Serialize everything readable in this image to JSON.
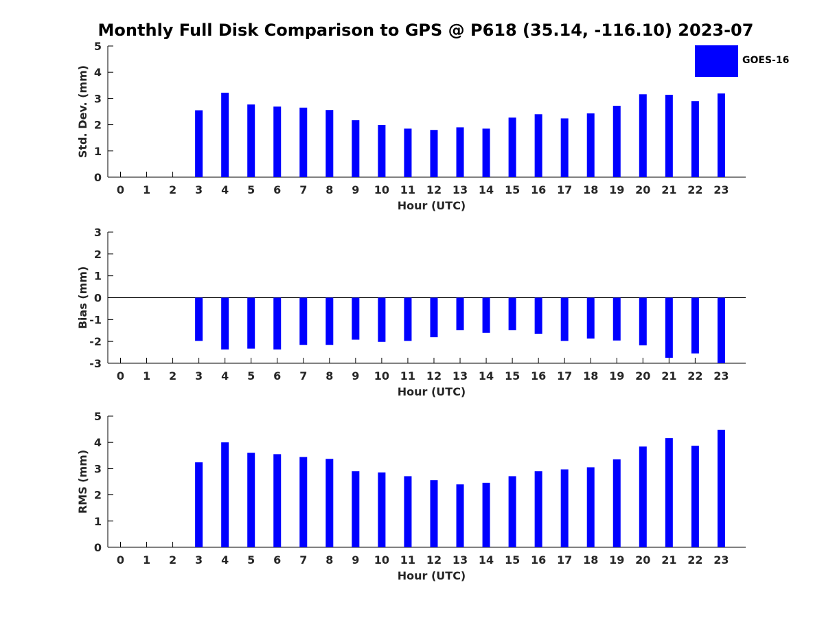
{
  "title": "Monthly Full Disk Comparison to GPS @ P618 (35.14, -116.10) 2023-07",
  "colors": {
    "bar": "#0000ff",
    "axis": "#000000",
    "tick_text": "#262626"
  },
  "legend": {
    "label": "GOES-16"
  },
  "chart_data": [
    {
      "type": "bar",
      "series": [
        {
          "name": "GOES-16",
          "values": [
            null,
            null,
            null,
            2.55,
            3.22,
            2.77,
            2.69,
            2.65,
            2.56,
            2.17,
            1.99,
            1.85,
            1.8,
            1.9,
            1.85,
            2.27,
            2.4,
            2.24,
            2.43,
            2.72,
            3.16,
            3.14,
            2.9,
            3.19
          ]
        }
      ],
      "categories": [
        "0",
        "1",
        "2",
        "3",
        "4",
        "5",
        "6",
        "7",
        "8",
        "9",
        "10",
        "11",
        "12",
        "13",
        "14",
        "15",
        "16",
        "17",
        "18",
        "19",
        "20",
        "21",
        "22",
        "23"
      ],
      "xlabel": "Hour (UTC)",
      "ylabel": "Std. Dev. (mm)",
      "ylim": [
        0,
        5
      ],
      "yticks": [
        "0",
        "1",
        "2",
        "3",
        "4",
        "5"
      ]
    },
    {
      "type": "bar",
      "series": [
        {
          "name": "GOES-16",
          "values": [
            null,
            null,
            null,
            -1.98,
            -2.37,
            -2.33,
            -2.37,
            -2.16,
            -2.16,
            -1.92,
            -2.02,
            -1.98,
            -1.81,
            -1.49,
            -1.61,
            -1.49,
            -1.65,
            -1.98,
            -1.87,
            -1.96,
            -2.18,
            -2.75,
            -2.55,
            -3.0
          ]
        }
      ],
      "categories": [
        "0",
        "1",
        "2",
        "3",
        "4",
        "5",
        "6",
        "7",
        "8",
        "9",
        "10",
        "11",
        "12",
        "13",
        "14",
        "15",
        "16",
        "17",
        "18",
        "19",
        "20",
        "21",
        "22",
        "23"
      ],
      "xlabel": "Hour (UTC)",
      "ylabel": "Bias (mm)",
      "ylim": [
        -3,
        3
      ],
      "yticks": [
        "-3",
        "-2",
        "-1",
        "0",
        "1",
        "2",
        "3"
      ]
    },
    {
      "type": "bar",
      "series": [
        {
          "name": "GOES-16",
          "values": [
            null,
            null,
            null,
            3.24,
            4.0,
            3.6,
            3.55,
            3.44,
            3.37,
            2.9,
            2.85,
            2.71,
            2.56,
            2.4,
            2.46,
            2.71,
            2.9,
            2.97,
            3.05,
            3.35,
            3.84,
            4.16,
            3.87,
            4.48
          ]
        }
      ],
      "categories": [
        "0",
        "1",
        "2",
        "3",
        "4",
        "5",
        "6",
        "7",
        "8",
        "9",
        "10",
        "11",
        "12",
        "13",
        "14",
        "15",
        "16",
        "17",
        "18",
        "19",
        "20",
        "21",
        "22",
        "23"
      ],
      "xlabel": "Hour (UTC)",
      "ylabel": "RMS (mm)",
      "ylim": [
        0,
        5
      ],
      "yticks": [
        "0",
        "1",
        "2",
        "3",
        "4",
        "5"
      ]
    }
  ]
}
